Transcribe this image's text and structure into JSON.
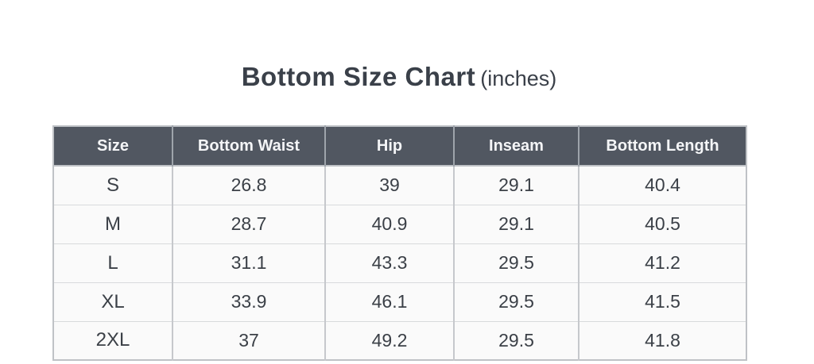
{
  "title": {
    "main": "Bottom Size Chart",
    "suffix": "(inches)"
  },
  "table": {
    "columns": [
      "Size",
      "Bottom Waist",
      "Hip",
      "Inseam",
      "Bottom Length"
    ],
    "rows": [
      [
        "S",
        "26.8",
        "39",
        "29.1",
        "40.4"
      ],
      [
        "M",
        "28.7",
        "40.9",
        "29.1",
        "40.5"
      ],
      [
        "L",
        "31.1",
        "43.3",
        "29.5",
        "41.2"
      ],
      [
        "XL",
        "33.9",
        "46.1",
        "29.5",
        "41.5"
      ],
      [
        "2XL",
        "37",
        "49.2",
        "29.5",
        "41.8"
      ]
    ],
    "colors": {
      "header_background": "#515761",
      "header_text": "#f4f5f7",
      "body_background": "#fafafa",
      "body_text": "#3b4047",
      "border": "#c6c8cc",
      "title_text": "#3a4049"
    }
  },
  "chart_data": {
    "type": "table",
    "title": "Bottom Size Chart (inches)",
    "unit": "inches",
    "columns": [
      "Size",
      "Bottom Waist",
      "Hip",
      "Inseam",
      "Bottom Length"
    ],
    "rows": [
      {
        "Size": "S",
        "Bottom Waist": 26.8,
        "Hip": 39,
        "Inseam": 29.1,
        "Bottom Length": 40.4
      },
      {
        "Size": "M",
        "Bottom Waist": 28.7,
        "Hip": 40.9,
        "Inseam": 29.1,
        "Bottom Length": 40.5
      },
      {
        "Size": "L",
        "Bottom Waist": 31.1,
        "Hip": 43.3,
        "Inseam": 29.5,
        "Bottom Length": 41.2
      },
      {
        "Size": "XL",
        "Bottom Waist": 33.9,
        "Hip": 46.1,
        "Inseam": 29.5,
        "Bottom Length": 41.5
      },
      {
        "Size": "2XL",
        "Bottom Waist": 37,
        "Hip": 49.2,
        "Inseam": 29.5,
        "Bottom Length": 41.8
      }
    ]
  }
}
